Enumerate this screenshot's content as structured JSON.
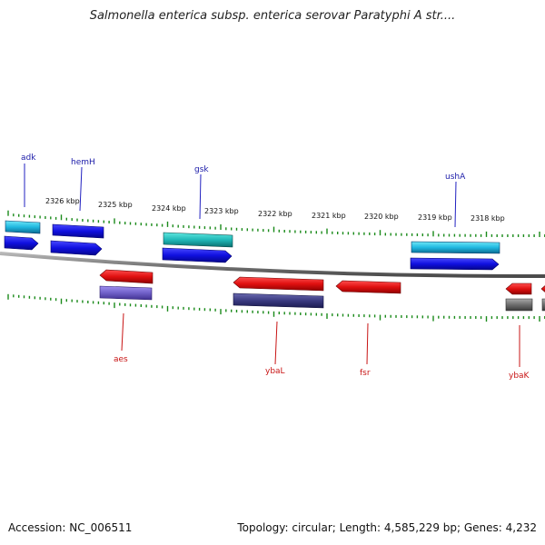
{
  "title": "Salmonella enterica subsp. enterica serovar Paratyphi A str....",
  "footer": {
    "accession": "Accession: NC_006511",
    "summary": "Topology: circular; Length: 4,585,229 bp; Genes: 4,232"
  },
  "ruler_labels": [
    "2326 kbp",
    "2325 kbp",
    "2324 kbp",
    "2323 kbp",
    "2322 kbp",
    "2321 kbp",
    "2320 kbp",
    "2319 kbp",
    "2318 kbp"
  ],
  "genes_top": [
    "adk",
    "hemH",
    "gsk",
    "ushA"
  ],
  "genes_bottom": [
    "aes",
    "ybaL",
    "fsr",
    "ybaK"
  ],
  "colors": {
    "forward_gene": "#1010e0",
    "forward_feature": "#20b0d8",
    "reverse_gene": "#e01010",
    "reverse_feature_purple": "#7060c8",
    "reverse_feature_navy": "#3a3a80",
    "reverse_feature_gray": "#6e6e6e",
    "backbone": "#8a8a8a",
    "tick": "#1a8a1a"
  }
}
